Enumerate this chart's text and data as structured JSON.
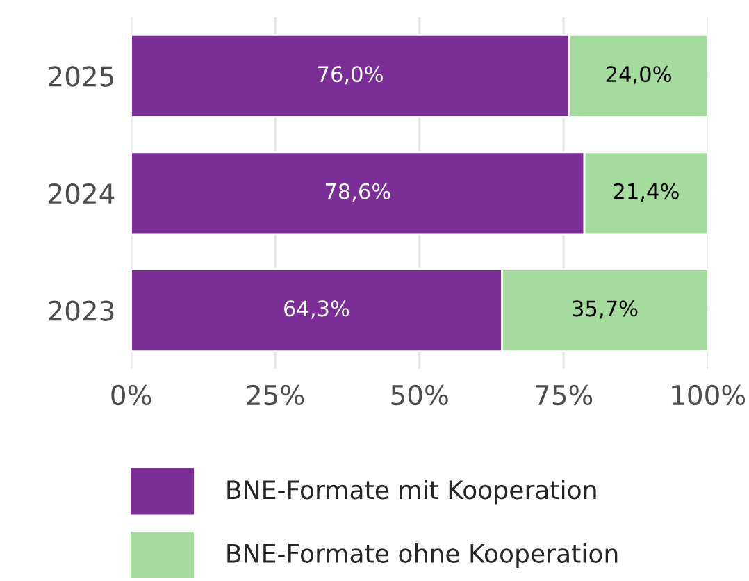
{
  "chart_data": {
    "type": "bar",
    "orientation": "horizontal",
    "stacked": true,
    "categories": [
      "2025",
      "2024",
      "2023"
    ],
    "series": [
      {
        "name": "BNE-Formate mit Kooperation",
        "color": "#7b2f96",
        "values": [
          76.0,
          78.6,
          64.3
        ],
        "value_labels": [
          "76,0%",
          "78,6%",
          "64,3%"
        ]
      },
      {
        "name": "BNE-Formate ohne Kooperation",
        "color": "#a6dba0",
        "values": [
          24.0,
          21.4,
          35.7
        ],
        "value_labels": [
          "24,0%",
          "21,4%",
          "35,7%"
        ]
      }
    ],
    "xlim": [
      0,
      100
    ],
    "xticks": [
      {
        "value": 0,
        "label": "0%"
      },
      {
        "value": 25,
        "label": "25%"
      },
      {
        "value": 50,
        "label": "50%"
      },
      {
        "value": 75,
        "label": "75%"
      },
      {
        "value": 100,
        "label": "100%"
      }
    ],
    "grid": true,
    "legend": "bottom"
  }
}
